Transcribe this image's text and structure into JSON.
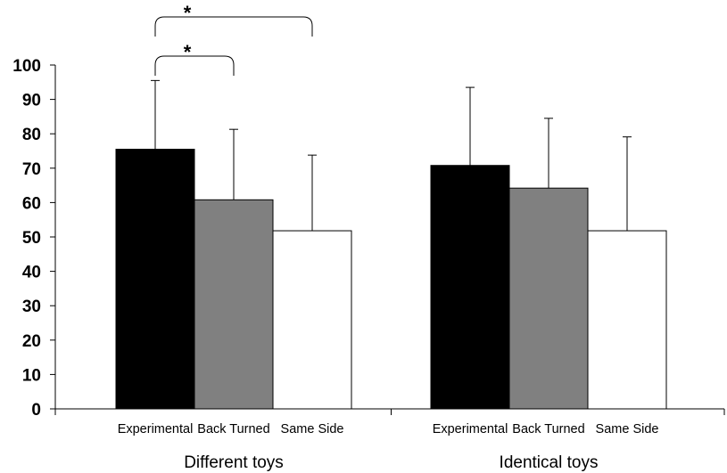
{
  "chart_data": {
    "type": "bar",
    "title": "",
    "xlabel": "",
    "ylabel": "",
    "ylim": [
      0,
      100
    ],
    "yticks": [
      0,
      10,
      20,
      30,
      40,
      50,
      60,
      70,
      80,
      90,
      100
    ],
    "grid": false,
    "legend": "none",
    "conditions": [
      "Experimental",
      "Back Turned",
      "Same Side"
    ],
    "condition_colors": [
      "#000000",
      "#808080",
      "#ffffff"
    ],
    "groups": [
      {
        "label": "Different toys",
        "bars": [
          {
            "condition": "Experimental",
            "value": 75.5,
            "error": 20
          },
          {
            "condition": "Back Turned",
            "value": 60.8,
            "error": 20.5
          },
          {
            "condition": "Same Side",
            "value": 51.8,
            "error": 22
          }
        ]
      },
      {
        "label": "Identical toys",
        "bars": [
          {
            "condition": "Experimental",
            "value": 70.8,
            "error": 22.7
          },
          {
            "condition": "Back Turned",
            "value": 64.2,
            "error": 20.3
          },
          {
            "condition": "Same Side",
            "value": 51.8,
            "error": 27.3
          }
        ]
      }
    ],
    "significance": [
      {
        "group": 0,
        "from": 0,
        "to": 2,
        "label": "*"
      },
      {
        "group": 0,
        "from": 0,
        "to": 1,
        "label": "*"
      }
    ]
  }
}
